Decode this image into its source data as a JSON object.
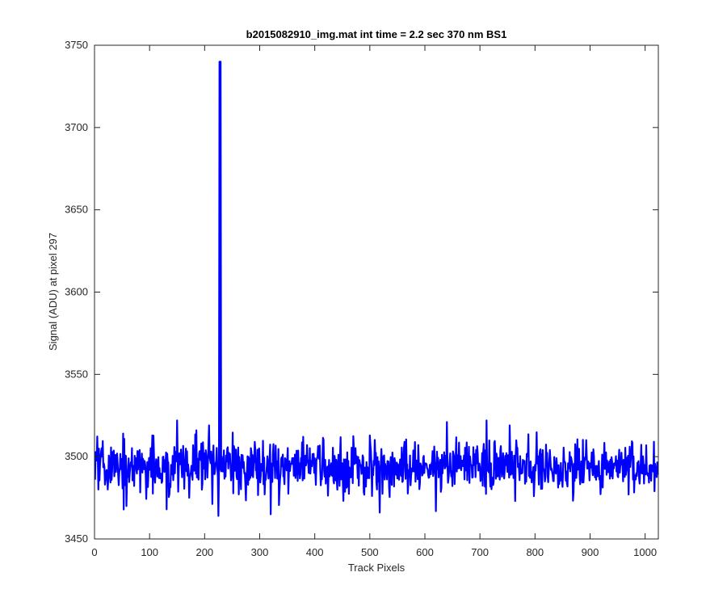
{
  "chart_data": {
    "type": "line",
    "title": "b2015082910_img.mat int time = 2.2 sec  370 nm BS1",
    "xlabel": "Track Pixels",
    "ylabel": "Signal (ADU) at pixel 297",
    "xlim": [
      0,
      1024
    ],
    "ylim": [
      3450,
      3750
    ],
    "x_ticks": [
      0,
      100,
      200,
      300,
      400,
      500,
      600,
      700,
      800,
      900,
      1000
    ],
    "y_ticks": [
      3450,
      3500,
      3550,
      3600,
      3650,
      3700,
      3750
    ],
    "grid": false,
    "box": true,
    "series": [
      {
        "color": "#0000ff",
        "x_start": 1,
        "x_step": 1,
        "num_points": 1024,
        "baseline": 3494,
        "noise_std": 8,
        "seed": 7,
        "anchor_points": [
          [
            1,
            3486
          ],
          [
            3,
            3500
          ],
          [
            7,
            3480
          ],
          [
            12,
            3503
          ],
          [
            19,
            3483
          ],
          [
            27,
            3498
          ],
          [
            38,
            3501
          ],
          [
            52,
            3514
          ],
          [
            58,
            3470
          ],
          [
            62,
            3499
          ],
          [
            80,
            3503
          ],
          [
            100,
            3492
          ],
          [
            125,
            3500
          ],
          [
            131,
            3468
          ],
          [
            148,
            3498
          ],
          [
            150,
            3522
          ],
          [
            158,
            3495
          ],
          [
            172,
            3475
          ],
          [
            185,
            3516
          ],
          [
            200,
            3502
          ],
          [
            210,
            3498
          ],
          [
            220,
            3496
          ],
          [
            225,
            3464
          ],
          [
            227,
            3740
          ],
          [
            229,
            3740
          ],
          [
            231,
            3500
          ],
          [
            240,
            3497
          ],
          [
            260,
            3495
          ],
          [
            291,
            3509
          ],
          [
            300,
            3496
          ],
          [
            320,
            3465
          ],
          [
            350,
            3498
          ],
          [
            372,
            3496
          ],
          [
            400,
            3499
          ],
          [
            430,
            3496
          ],
          [
            450,
            3496
          ],
          [
            460,
            3482
          ],
          [
            482,
            3496
          ],
          [
            520,
            3496
          ],
          [
            546,
            3496
          ],
          [
            580,
            3491
          ],
          [
            588,
            3507
          ],
          [
            600,
            3496
          ],
          [
            640,
            3521
          ],
          [
            645,
            3497
          ],
          [
            680,
            3506
          ],
          [
            700,
            3493
          ],
          [
            712,
            3522
          ],
          [
            720,
            3496
          ],
          [
            764,
            3473
          ],
          [
            800,
            3495
          ],
          [
            807,
            3483
          ],
          [
            860,
            3496
          ],
          [
            881,
            3489
          ],
          [
            900,
            3496
          ],
          [
            945,
            3496
          ],
          [
            960,
            3485
          ],
          [
            970,
            3477
          ],
          [
            1000,
            3493
          ],
          [
            1010,
            3495
          ],
          [
            1024,
            3490
          ]
        ]
      }
    ]
  }
}
